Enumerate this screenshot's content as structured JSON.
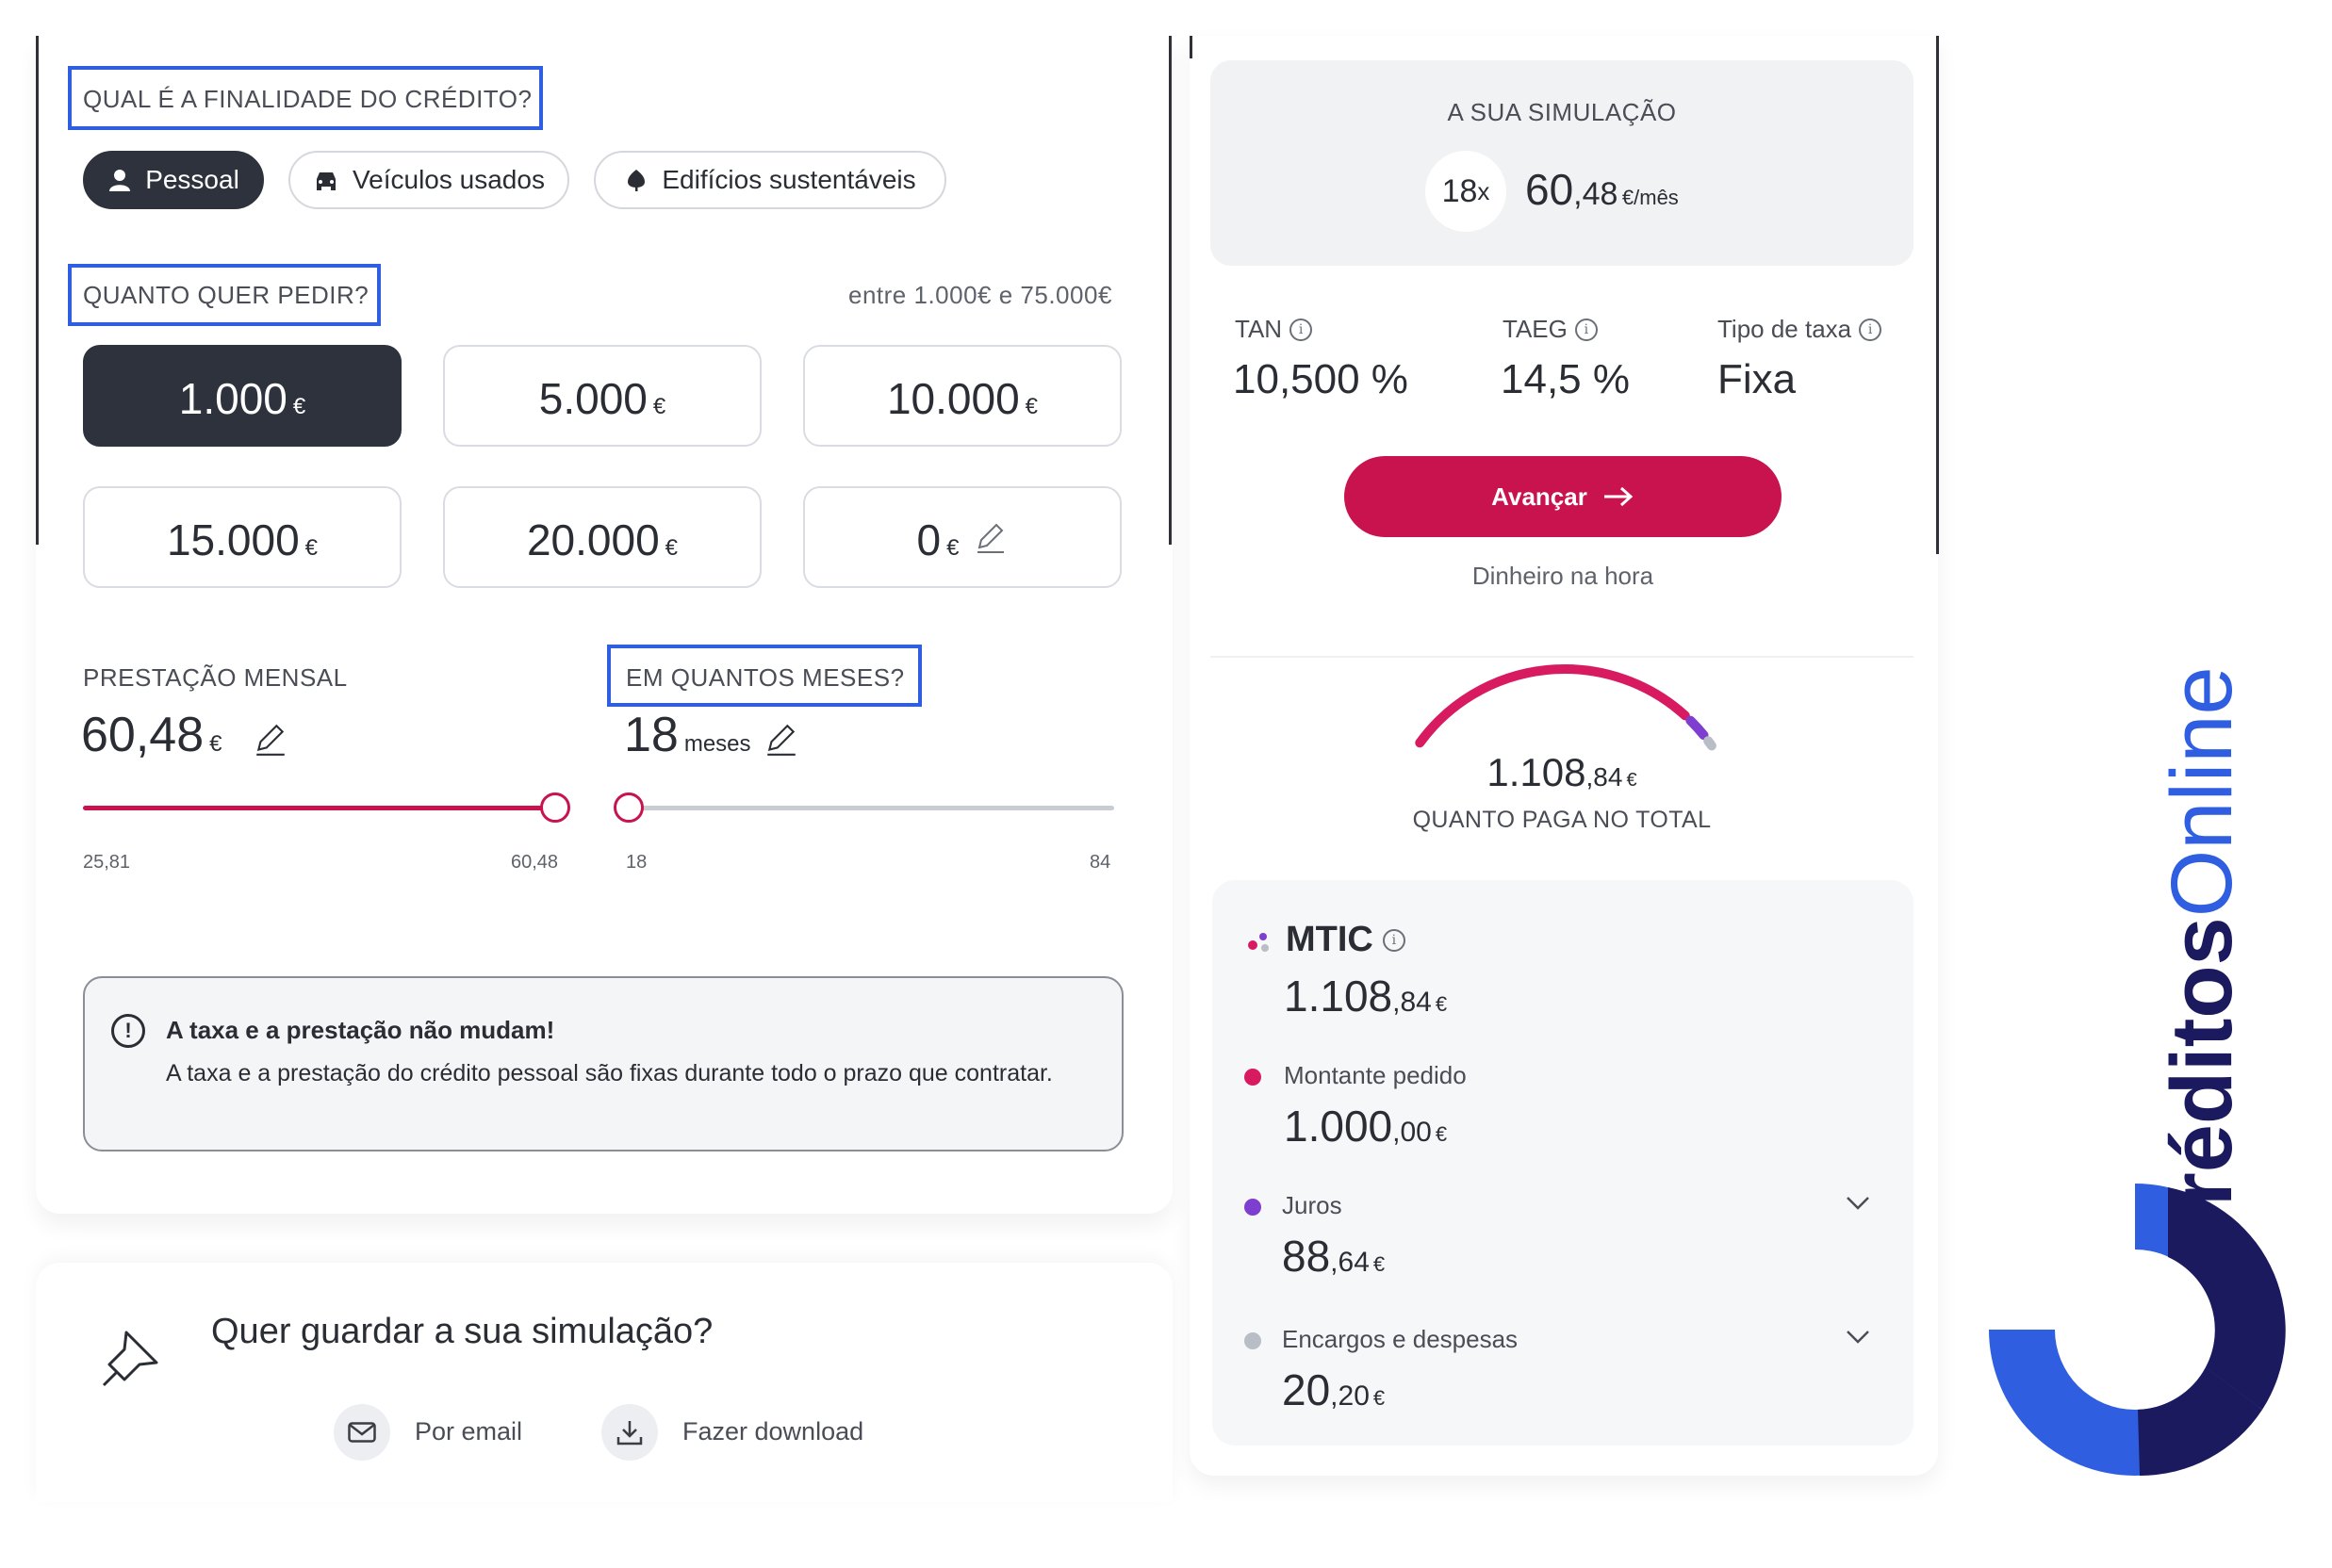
{
  "left": {
    "purpose_label": "QUAL É A FINALIDADE DO CRÉDITO?",
    "purpose_options": [
      {
        "label": "Pessoal",
        "icon": "person-icon",
        "active": true
      },
      {
        "label": "Veículos usados",
        "icon": "car-icon",
        "active": false
      },
      {
        "label": "Edifícios sustentáveis",
        "icon": "leaf-icon",
        "active": false
      }
    ],
    "amount_label": "QUANTO QUER PEDIR?",
    "amount_range": "entre 1.000€ e 75.000€",
    "amounts": [
      {
        "value": "1.000",
        "currency": "€",
        "active": true
      },
      {
        "value": "5.000",
        "currency": "€",
        "active": false
      },
      {
        "value": "10.000",
        "currency": "€",
        "active": false
      },
      {
        "value": "15.000",
        "currency": "€",
        "active": false
      },
      {
        "value": "20.000",
        "currency": "€",
        "active": false
      },
      {
        "value": "0",
        "currency": "€",
        "active": false,
        "editable": true
      }
    ],
    "monthly": {
      "label": "PRESTAÇÃO MENSAL",
      "value": "60,48",
      "currency": "€",
      "min": "25,81",
      "max": "60,48",
      "slider_fraction": 1.0
    },
    "months": {
      "label": "EM QUANTOS MESES?",
      "value": "18",
      "unit": "meses",
      "min": "18",
      "max": "84",
      "slider_fraction": 0.0
    },
    "notice": {
      "title": "A taxa e a prestação não mudam!",
      "body": "A taxa e a prestação do crédito pessoal são fixas durante todo o prazo que contratar."
    },
    "save": {
      "title": "Quer guardar a sua simulação?",
      "email_label": "Por email",
      "download_label": "Fazer download"
    }
  },
  "right": {
    "sim_title": "A SUA SIMULAÇÃO",
    "sim_months": "18",
    "sim_months_suffix": "x",
    "sim_monthly_int": "60",
    "sim_monthly_dec": ",48",
    "sim_monthly_unit": "€/mês",
    "rates": [
      {
        "label": "TAN",
        "value": "10,500 %"
      },
      {
        "label": "TAEG",
        "value": "14,5 %"
      },
      {
        "label": "Tipo de taxa",
        "value": "Fixa"
      }
    ],
    "advance_label": "Avançar",
    "advance_sub": "Dinheiro na hora",
    "total_int": "1.108",
    "total_dec": ",84",
    "total_currency": "€",
    "total_label": "QUANTO PAGA NO TOTAL",
    "breakdown": [
      {
        "label": "MTIC",
        "int": "1.108",
        "dec": ",84",
        "currency": "€",
        "color": "#d81b60"
      },
      {
        "label": "Montante pedido",
        "int": "1.000",
        "dec": ",00",
        "currency": "€",
        "color": "#d81b60"
      },
      {
        "label": "Juros",
        "int": "88",
        "dec": ",64",
        "currency": "€",
        "color": "#7e3fd1"
      },
      {
        "label": "Encargos e despesas",
        "int": "20",
        "dec": ",20",
        "currency": "€",
        "color": "#b9bec6"
      }
    ],
    "gauge_fractions": {
      "montante": 0.902,
      "juros": 0.08,
      "encargos": 0.018
    }
  },
  "logo": {
    "text_bold": "réditos",
    "text_light": "Online",
    "color_blue": "#2f5fe0",
    "color_navy": "#1c1a5e"
  }
}
